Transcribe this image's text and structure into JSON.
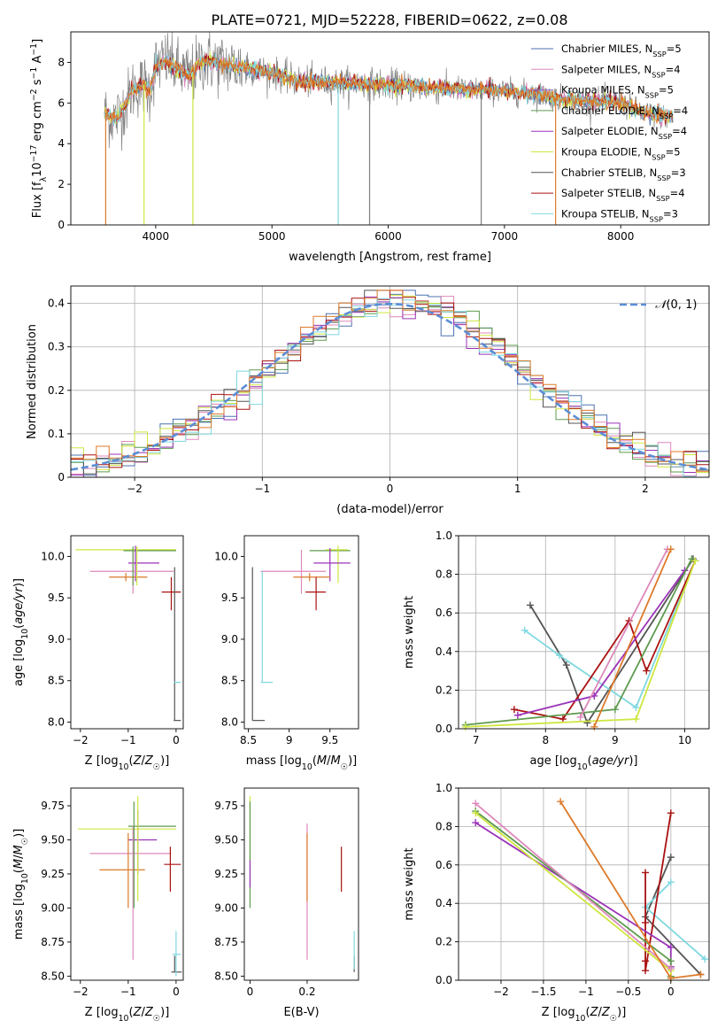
{
  "title": "PLATE=0721, MJD=52228, FIBERID=0622, z=0.08",
  "colors": {
    "Chabrier MILES": "#4c72b0",
    "Salpeter MILES": "#dd88bb",
    "Kroupa MILES": "#8e6fc9",
    "Chabrier ELODIE": "#5e9b4e",
    "Salpeter ELODIE": "#9b33b8",
    "Kroupa ELODIE": "#cfe640",
    "Chabrier STELIB": "#555555",
    "Salpeter STELIB": "#aa1111",
    "Kroupa STELIB": "#7fd8e0",
    "extra": "#dd7a2a",
    "data": "#808080",
    "normal": "#5b8dd6"
  },
  "chart_data": [
    {
      "type": "line",
      "id": "spectrum",
      "title": "PLATE=0721, MJD=52228, FIBERID=0622, z=0.08",
      "xlabel": "wavelength [Angstrom, rest frame]",
      "ylabel": "Flux [f",
      "ylabel_full": "Flux [fλ10^-17 erg cm^-2 s^-1 A^-1]",
      "xlim": [
        3270,
        8760
      ],
      "ylim": [
        0,
        9.5
      ],
      "xticks": [
        4000,
        5000,
        6000,
        7000,
        8000
      ],
      "yticks": [
        0,
        2,
        4,
        6,
        8
      ],
      "grid": false,
      "legend_placement": "top-right",
      "legend": [
        {
          "name": "Chabrier MILES",
          "nssp": "5"
        },
        {
          "name": "Salpeter MILES",
          "nssp": "4"
        },
        {
          "name": "Kroupa MILES",
          "nssp": "5"
        },
        {
          "name": "Chabrier ELODIE",
          "nssp": "4"
        },
        {
          "name": "Salpeter ELODIE",
          "nssp": "4"
        },
        {
          "name": "Kroupa ELODIE",
          "nssp": "5"
        },
        {
          "name": "Chabrier STELIB",
          "nssp": "3"
        },
        {
          "name": "Salpeter STELIB",
          "nssp": "4"
        },
        {
          "name": "Kroupa STELIB",
          "nssp": "3"
        }
      ],
      "data_range_x": [
        3560,
        8450
      ],
      "model_shape": [
        [
          3560,
          5.5
        ],
        [
          3650,
          5.2
        ],
        [
          3750,
          6.0
        ],
        [
          3800,
          6.7
        ],
        [
          3900,
          6.9
        ],
        [
          3950,
          6.6
        ],
        [
          4000,
          7.8
        ],
        [
          4100,
          8.1
        ],
        [
          4200,
          7.6
        ],
        [
          4300,
          7.3
        ],
        [
          4400,
          8.1
        ],
        [
          4600,
          7.9
        ],
        [
          4800,
          7.7
        ],
        [
          5000,
          7.5
        ],
        [
          5200,
          7.1
        ],
        [
          5500,
          7.0
        ],
        [
          6000,
          6.9
        ],
        [
          6500,
          6.7
        ],
        [
          7000,
          6.6
        ],
        [
          7300,
          6.4
        ],
        [
          7500,
          6.2
        ],
        [
          8000,
          6.0
        ],
        [
          8200,
          5.5
        ],
        [
          8450,
          5.3
        ]
      ]
    },
    {
      "type": "histogram",
      "id": "residuals",
      "xlabel": "(data-model)/error",
      "ylabel": "Normed distribution",
      "xlim": [
        -2.5,
        2.5
      ],
      "ylim": [
        0,
        0.44
      ],
      "xticks": [
        -2,
        -1,
        0,
        1,
        2
      ],
      "yticks": [
        0.0,
        0.1,
        0.2,
        0.3,
        0.4
      ],
      "grid": true,
      "legend_placement": "top-right",
      "reference": "N(0,1)",
      "bin_width": 0.1
    },
    {
      "type": "scatter",
      "id": "age-vs-Z",
      "xlabel": "Z [log10(Z/Z☉)]",
      "ylabel": "age [log10(age/yr)]",
      "xlim": [
        -2.2,
        0.15
      ],
      "ylim": [
        7.92,
        10.25
      ],
      "xticks": [
        -2,
        -1,
        0
      ],
      "yticks": [
        8.0,
        8.5,
        9.0,
        9.5,
        10.0
      ],
      "points": [
        {
          "series": "Kroupa ELODIE",
          "x": -1.1,
          "y": 10.08,
          "xl": -2.1,
          "xh": 0.0,
          "yl": 10.08,
          "yh": 10.08
        },
        {
          "series": "Chabrier ELODIE",
          "x": -0.55,
          "y": 10.07,
          "xl": -1.1,
          "xh": 0.0,
          "yl": 10.07,
          "yh": 10.07
        },
        {
          "series": "Salpeter ELODIE",
          "x": -0.85,
          "y": 9.92,
          "xl": -1.0,
          "xh": -0.35,
          "yl": 9.7,
          "yh": 10.13
        },
        {
          "series": "Salpeter MILES",
          "x": -0.9,
          "y": 9.82,
          "xl": -1.8,
          "xh": -0.05,
          "yl": 9.55,
          "yh": 10.08
        },
        {
          "series": "extra",
          "x": -1.05,
          "y": 9.75,
          "xl": -1.4,
          "xh": -0.6,
          "yl": 9.7,
          "yh": 9.8
        },
        {
          "series": "Salpeter STELIB",
          "x": -0.1,
          "y": 9.57,
          "xl": -0.3,
          "xh": 0.1,
          "yl": 9.35,
          "yh": 9.75
        },
        {
          "series": "Chabrier STELIB",
          "x": -0.03,
          "y": 8.02,
          "xl": -0.05,
          "xh": 0.1,
          "yl": 8.02,
          "yh": 9.87
        },
        {
          "series": "Kroupa STELIB",
          "x": 0.0,
          "y": 8.48,
          "xl": -0.05,
          "xh": 0.1,
          "yl": 8.48,
          "yh": 8.48
        },
        {
          "series": "Chabrier ELODIE",
          "x": -0.9,
          "y": 9.9,
          "xl": -0.9,
          "xh": -0.9,
          "yl": 9.65,
          "yh": 10.12
        },
        {
          "series": "Kroupa ELODIE",
          "x": -0.82,
          "y": 9.9,
          "xl": -0.82,
          "xh": -0.82,
          "yl": 9.65,
          "yh": 10.12
        }
      ]
    },
    {
      "type": "scatter",
      "id": "age-vs-mass",
      "xlabel": "mass [log10(M/M☉)]",
      "ylabel": "",
      "xlim": [
        8.45,
        9.85
      ],
      "ylim": [
        7.92,
        10.25
      ],
      "xticks": [
        8.5,
        9.0,
        9.5
      ],
      "yticks": [
        8.0,
        8.5,
        9.0,
        9.5,
        10.0
      ],
      "points": [
        {
          "series": "Chabrier ELODIE",
          "x": 9.5,
          "y": 10.07,
          "xl": 9.25,
          "xh": 9.75,
          "yl": 10.07,
          "yh": 10.07
        },
        {
          "series": "Kroupa ELODIE",
          "x": 9.6,
          "y": 10.08,
          "xl": 9.45,
          "xh": 9.72,
          "yl": 9.68,
          "yh": 10.13
        },
        {
          "series": "Salpeter ELODIE",
          "x": 9.5,
          "y": 9.92,
          "xl": 9.3,
          "xh": 9.75,
          "yl": 9.7,
          "yh": 10.1
        },
        {
          "series": "Salpeter MILES",
          "x": 9.15,
          "y": 9.82,
          "xl": 8.65,
          "xh": 9.45,
          "yl": 9.55,
          "yh": 10.08
        },
        {
          "series": "extra",
          "x": 9.25,
          "y": 9.75,
          "xl": 9.05,
          "xh": 9.5,
          "yl": 9.7,
          "yh": 9.8
        },
        {
          "series": "Salpeter STELIB",
          "x": 9.33,
          "y": 9.57,
          "xl": 9.2,
          "xh": 9.45,
          "yl": 9.35,
          "yh": 9.75
        },
        {
          "series": "Chabrier STELIB",
          "x": 8.55,
          "y": 8.02,
          "xl": 8.55,
          "xh": 8.7,
          "yl": 8.02,
          "yh": 9.87
        },
        {
          "series": "Kroupa STELIB",
          "x": 8.67,
          "y": 8.48,
          "xl": 8.65,
          "xh": 8.8,
          "yl": 8.48,
          "yh": 9.82
        }
      ]
    },
    {
      "type": "line",
      "id": "mass-weight-vs-age",
      "xlabel": "age [log10(age/yr)]",
      "ylabel": "mass weight",
      "xlim": [
        6.75,
        10.35
      ],
      "ylim": [
        0,
        1.0
      ],
      "xticks": [
        7,
        8,
        9,
        10
      ],
      "yticks": [
        0.0,
        0.2,
        0.4,
        0.6,
        0.8,
        1.0
      ],
      "grid": true,
      "series": [
        {
          "name": "Chabrier STELIB",
          "x": [
            7.78,
            8.3,
            8.6,
            10.12
          ],
          "y": [
            0.64,
            0.33,
            0.03,
            0.88
          ]
        },
        {
          "name": "Kroupa STELIB",
          "x": [
            7.7,
            8.2,
            9.3,
            10.15
          ],
          "y": [
            0.51,
            0.38,
            0.11,
            0.87
          ]
        },
        {
          "name": "Salpeter STELIB",
          "x": [
            7.55,
            8.25,
            9.2,
            9.45,
            10.15
          ],
          "y": [
            0.1,
            0.05,
            0.56,
            0.3,
            0.87
          ]
        },
        {
          "name": "Salpeter ELODIE",
          "x": [
            7.6,
            8.7,
            10.0
          ],
          "y": [
            0.07,
            0.17,
            0.82
          ]
        },
        {
          "name": "Chabrier ELODIE",
          "x": [
            6.85,
            9.0,
            10.1
          ],
          "y": [
            0.02,
            0.1,
            0.88
          ]
        },
        {
          "name": "Kroupa ELODIE",
          "x": [
            6.85,
            9.3,
            10.15
          ],
          "y": [
            0.01,
            0.05,
            0.87
          ]
        },
        {
          "name": "Salpeter MILES",
          "x": [
            8.5,
            9.75
          ],
          "y": [
            0.06,
            0.93
          ]
        },
        {
          "name": "extra",
          "x": [
            8.7,
            9.8
          ],
          "y": [
            0.01,
            0.93
          ]
        }
      ]
    },
    {
      "type": "scatter",
      "id": "mass-vs-Z",
      "xlabel": "Z [log10(Z/Z☉)]",
      "ylabel": "mass [log10(M/M☉)]",
      "xlim": [
        -2.2,
        0.15
      ],
      "ylim": [
        8.47,
        9.88
      ],
      "xticks": [
        -2,
        -1,
        0
      ],
      "yticks": [
        8.5,
        8.75,
        9.0,
        9.25,
        9.5,
        9.75
      ],
      "points": [
        {
          "series": "Kroupa ELODIE",
          "x": -1.1,
          "y": 9.58,
          "xl": -2.05,
          "xh": 0.0,
          "yl": 9.58,
          "yh": 9.58
        },
        {
          "series": "Chabrier ELODIE",
          "x": -0.5,
          "y": 9.6,
          "xl": -1.0,
          "xh": 0.0,
          "yl": 9.6,
          "yh": 9.6
        },
        {
          "series": "Salpeter ELODIE",
          "x": -0.8,
          "y": 9.5,
          "xl": -1.0,
          "xh": -0.4,
          "yl": 9.25,
          "yh": 9.72
        },
        {
          "series": "Salpeter MILES",
          "x": -0.9,
          "y": 9.4,
          "xl": -1.8,
          "xh": -0.1,
          "yl": 8.62,
          "yh": 9.6
        },
        {
          "series": "extra",
          "x": -1.0,
          "y": 9.28,
          "xl": -1.6,
          "xh": -0.65,
          "yl": 9.0,
          "yh": 9.55
        },
        {
          "series": "Salpeter STELIB",
          "x": -0.12,
          "y": 9.32,
          "xl": -0.25,
          "xh": 0.1,
          "yl": 9.12,
          "yh": 9.45
        },
        {
          "series": "Chabrier STELIB",
          "x": -0.03,
          "y": 8.53,
          "xl": -0.1,
          "xh": 0.12,
          "yl": 8.53,
          "yh": 8.65
        },
        {
          "series": "Kroupa STELIB",
          "x": 0.0,
          "y": 8.66,
          "xl": -0.08,
          "xh": 0.1,
          "yl": 8.5,
          "yh": 8.83
        },
        {
          "series": "Chabrier ELODIE",
          "x": -0.88,
          "y": 9.5,
          "xl": -0.88,
          "xh": -0.88,
          "yl": 9.0,
          "yh": 9.78
        },
        {
          "series": "Kroupa ELODIE",
          "x": -0.8,
          "y": 9.5,
          "xl": -0.8,
          "xh": -0.8,
          "yl": 9.05,
          "yh": 9.82
        }
      ]
    },
    {
      "type": "scatter",
      "id": "mass-vs-ebv",
      "xlabel": "E(B-V)",
      "ylabel": "",
      "xlim": [
        -0.02,
        0.38
      ],
      "ylim": [
        8.47,
        9.88
      ],
      "xticks": [
        0.0,
        0.2
      ],
      "yticks": [
        8.5,
        8.75,
        9.0,
        9.25,
        9.5,
        9.75
      ],
      "points": [
        {
          "series": "Kroupa ELODIE",
          "x": 0.0,
          "y": 9.55,
          "xl": 0.0,
          "xh": 0.0,
          "yl": 9.35,
          "yh": 9.82
        },
        {
          "series": "Chabrier ELODIE",
          "x": 0.0,
          "y": 9.4,
          "xl": 0.0,
          "xh": 0.0,
          "yl": 9.0,
          "yh": 9.78
        },
        {
          "series": "Salpeter ELODIE",
          "x": 0.0,
          "y": 9.25,
          "xl": 0.0,
          "xh": 0.0,
          "yl": 9.15,
          "yh": 9.35
        },
        {
          "series": "Salpeter MILES",
          "x": 0.2,
          "y": 9.3,
          "xl": 0.2,
          "xh": 0.2,
          "yl": 8.62,
          "yh": 9.62
        },
        {
          "series": "extra",
          "x": 0.2,
          "y": 9.2,
          "xl": 0.2,
          "xh": 0.2,
          "yl": 9.05,
          "yh": 9.55
        },
        {
          "series": "Salpeter STELIB",
          "x": 0.32,
          "y": 9.25,
          "xl": 0.32,
          "xh": 0.32,
          "yl": 9.12,
          "yh": 9.45
        },
        {
          "series": "Chabrier STELIB",
          "x": 0.365,
          "y": 8.6,
          "xl": 0.365,
          "xh": 0.365,
          "yl": 8.53,
          "yh": 8.65
        },
        {
          "series": "Kroupa STELIB",
          "x": 0.365,
          "y": 8.7,
          "xl": 0.365,
          "xh": 0.365,
          "yl": 8.55,
          "yh": 8.83
        }
      ]
    },
    {
      "type": "line",
      "id": "mass-weight-vs-Z",
      "xlabel": "Z [log10(Z/Z☉)]",
      "ylabel": "mass weight",
      "xlim": [
        -2.5,
        0.45
      ],
      "ylim": [
        0,
        1.0
      ],
      "xticks": [
        -2.0,
        -1.5,
        -1.0,
        -0.5,
        0.0
      ],
      "yticks": [
        0.0,
        0.2,
        0.4,
        0.6,
        0.8,
        1.0
      ],
      "grid": true,
      "series": [
        {
          "name": "Chabrier STELIB",
          "x": [
            0.0,
            -0.3,
            0.35
          ],
          "y": [
            0.64,
            0.33,
            0.03
          ]
        },
        {
          "name": "Kroupa STELIB",
          "x": [
            0.0,
            -0.3,
            0.4
          ],
          "y": [
            0.51,
            0.38,
            0.11
          ]
        },
        {
          "name": "Salpeter STELIB",
          "x": [
            -0.3,
            -0.3,
            -0.3,
            -0.3,
            0.0
          ],
          "y": [
            0.56,
            0.3,
            0.1,
            0.05,
            0.87
          ]
        },
        {
          "name": "Salpeter ELODIE",
          "x": [
            -2.3,
            0.0,
            0.0
          ],
          "y": [
            0.82,
            0.17,
            0.07
          ]
        },
        {
          "name": "Chabrier ELODIE",
          "x": [
            -2.3,
            0.0,
            0.0
          ],
          "y": [
            0.88,
            0.1,
            0.02
          ]
        },
        {
          "name": "Kroupa ELODIE",
          "x": [
            -2.3,
            0.0,
            0.0
          ],
          "y": [
            0.87,
            0.05,
            0.01
          ]
        },
        {
          "name": "Salpeter MILES",
          "x": [
            -2.3,
            0.0
          ],
          "y": [
            0.92,
            0.06
          ]
        },
        {
          "name": "extra",
          "x": [
            -1.3,
            0.0,
            0.35
          ],
          "y": [
            0.93,
            0.01,
            0.03
          ]
        }
      ]
    }
  ]
}
